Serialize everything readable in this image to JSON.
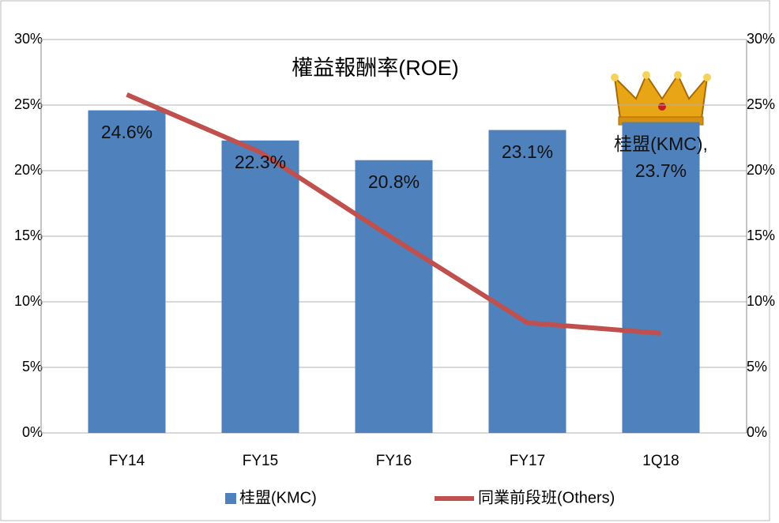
{
  "chart_data": {
    "type": "bar_line",
    "title": "權益報酬率(ROE)",
    "categories": [
      "FY14",
      "FY15",
      "FY16",
      "FY17",
      "1Q18"
    ],
    "series": [
      {
        "name": "桂盟(KMC)",
        "type": "bar",
        "color": "#4f81bd",
        "values": [
          24.6,
          22.3,
          20.8,
          23.1,
          23.7
        ],
        "value_labels": [
          "24.6%",
          "22.3%",
          "20.8%",
          "23.1%",
          "桂盟(KMC),\n23.7%"
        ]
      },
      {
        "name": "同業前段班(Others)",
        "type": "line",
        "color": "#c0504d",
        "values": [
          25.8,
          21.4,
          14.8,
          8.4,
          7.6
        ]
      }
    ],
    "ylim": [
      0,
      30
    ],
    "yticks": [
      {
        "value": 0,
        "label": "0%"
      },
      {
        "value": 5,
        "label": "5%"
      },
      {
        "value": 10,
        "label": "10%"
      },
      {
        "value": 15,
        "label": "15%"
      },
      {
        "value": 20,
        "label": "20%"
      },
      {
        "value": 25,
        "label": "25%"
      },
      {
        "value": 30,
        "label": "30%"
      }
    ],
    "y2lim": [
      0,
      30
    ],
    "y2ticks": [
      {
        "value": 0,
        "label": "0%"
      },
      {
        "value": 5,
        "label": "5%"
      },
      {
        "value": 10,
        "label": "10%"
      },
      {
        "value": 15,
        "label": "15%"
      },
      {
        "value": 20,
        "label": "20%"
      },
      {
        "value": 25,
        "label": "25%"
      },
      {
        "value": 30,
        "label": "30%"
      }
    ],
    "grid": true,
    "legend": "bottom"
  }
}
